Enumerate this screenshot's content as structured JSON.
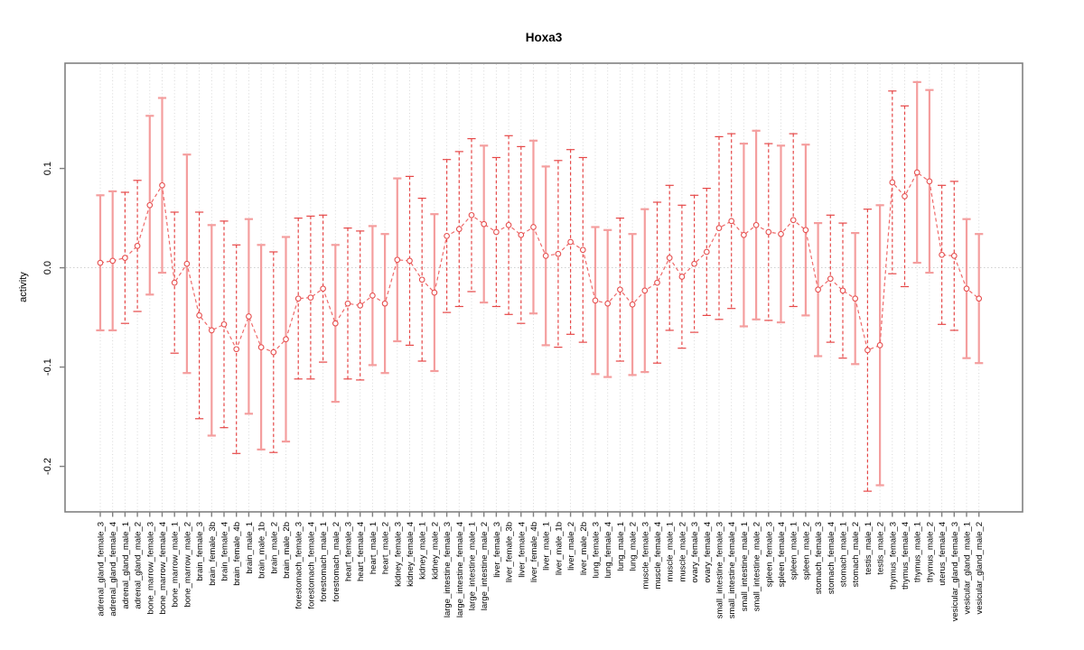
{
  "chart_data": {
    "type": "scatter",
    "title": "Hoxa3",
    "ylabel": "activity",
    "xlabel": "",
    "ylim": [
      -0.256,
      0.214
    ],
    "yticks": [
      0.1,
      0.0,
      -0.1,
      -0.2
    ],
    "ytick_labels": [
      "0.1",
      "0.0",
      "-0.1",
      "-0.2"
    ],
    "grid": "vertical-dotted",
    "zero_line": true,
    "legend_position": "none",
    "marker": "open-circle",
    "line_style": "dashed",
    "categories": [
      "adrenal_gland_female_3",
      "adrenal_gland_female_4",
      "adrenal_gland_male_1",
      "adrenal_gland_male_2",
      "bone_marrow_female_3",
      "bone_marrow_female_4",
      "bone_marrow_male_1",
      "bone_marrow_male_2",
      "brain_female_3",
      "brain_female_3b",
      "brain_female_4",
      "brain_female_4b",
      "brain_male_1",
      "brain_male_1b",
      "brain_male_2",
      "brain_male_2b",
      "forestomach_female_3",
      "forestomach_female_4",
      "forestomach_male_1",
      "forestomach_male_2",
      "heart_female_3",
      "heart_female_4",
      "heart_male_1",
      "heart_male_2",
      "kidney_female_3",
      "kidney_female_4",
      "kidney_male_1",
      "kidney_male_2",
      "large_intestine_female_3",
      "large_intestine_female_4",
      "large_intestine_male_1",
      "large_intestine_male_2",
      "liver_female_3",
      "liver_female_3b",
      "liver_female_4",
      "liver_female_4b",
      "liver_male_1",
      "liver_male_1b",
      "liver_male_2",
      "liver_male_2b",
      "lung_female_3",
      "lung_female_4",
      "lung_male_1",
      "lung_male_2",
      "muscle_female_3",
      "muscle_female_4",
      "muscle_male_1",
      "muscle_male_2",
      "ovary_female_3",
      "ovary_female_4",
      "small_intestine_female_3",
      "small_intestine_female_4",
      "small_intestine_male_1",
      "small_intestine_male_2",
      "spleen_female_3",
      "spleen_female_4",
      "spleen_male_1",
      "spleen_male_2",
      "stomach_female_3",
      "stomach_female_4",
      "stomach_male_1",
      "stomach_male_2",
      "testis_male_1",
      "testis_male_2",
      "thymus_female_3",
      "thymus_female_4",
      "thymus_male_1",
      "thymus_male_2",
      "uterus_female_4",
      "vesicular_gland_female_3",
      "vesicular_gland_male_1",
      "vesicular_gland_male_2"
    ],
    "values": [
      0.005,
      0.007,
      0.01,
      0.022,
      0.063,
      0.083,
      -0.015,
      0.004,
      -0.048,
      -0.063,
      -0.057,
      -0.082,
      -0.049,
      -0.08,
      -0.085,
      -0.072,
      -0.031,
      -0.03,
      -0.021,
      -0.056,
      -0.036,
      -0.038,
      -0.028,
      -0.036,
      0.008,
      0.007,
      -0.012,
      -0.025,
      0.032,
      0.039,
      0.053,
      0.044,
      0.036,
      0.043,
      0.033,
      0.041,
      0.012,
      0.014,
      0.026,
      0.018,
      -0.033,
      -0.036,
      -0.022,
      -0.037,
      -0.023,
      -0.015,
      0.01,
      -0.009,
      0.004,
      0.016,
      0.04,
      0.047,
      0.033,
      0.043,
      0.036,
      0.034,
      0.048,
      0.038,
      -0.022,
      -0.011,
      -0.023,
      -0.031,
      -0.083,
      -0.078,
      0.086,
      0.072,
      0.096,
      0.087,
      0.013,
      0.012,
      -0.021,
      -0.031
    ],
    "errors": [
      0.068,
      0.07,
      0.066,
      0.066,
      0.09,
      0.088,
      0.071,
      0.11,
      0.104,
      0.106,
      0.104,
      0.105,
      0.098,
      0.103,
      0.101,
      0.103,
      0.081,
      0.082,
      0.074,
      0.079,
      0.076,
      0.075,
      0.07,
      0.07,
      0.082,
      0.085,
      0.082,
      0.079,
      0.077,
      0.078,
      0.077,
      0.079,
      0.075,
      0.09,
      0.089,
      0.087,
      0.09,
      0.094,
      0.093,
      0.093,
      0.074,
      0.074,
      0.072,
      0.071,
      0.082,
      0.081,
      0.073,
      0.072,
      0.069,
      0.064,
      0.092,
      0.088,
      0.092,
      0.095,
      0.089,
      0.089,
      0.087,
      0.086,
      0.067,
      0.064,
      0.068,
      0.066,
      0.142,
      0.141,
      0.092,
      0.091,
      0.091,
      0.092,
      0.07,
      0.075,
      0.07,
      0.065
    ],
    "bar_styles": [
      "s",
      "s",
      "d",
      "d",
      "s",
      "s",
      "d",
      "s",
      "d",
      "s",
      "d",
      "d",
      "s",
      "s",
      "d",
      "s",
      "d",
      "d",
      "d",
      "s",
      "d",
      "d",
      "s",
      "s",
      "s",
      "d",
      "d",
      "s",
      "d",
      "d",
      "d",
      "s",
      "d",
      "d",
      "d",
      "s",
      "s",
      "d",
      "d",
      "d",
      "s",
      "s",
      "d",
      "s",
      "s",
      "d",
      "d",
      "d",
      "d",
      "d",
      "d",
      "d",
      "s",
      "s",
      "d",
      "s",
      "d",
      "s",
      "s",
      "d",
      "d",
      "s",
      "d",
      "s",
      "d",
      "d",
      "s",
      "s",
      "d",
      "d",
      "s",
      "s"
    ],
    "colors": {
      "solid_bar": "#f49e9e",
      "dashed_bar": "#e64848",
      "series_line": "#ef6a6a",
      "marker_stroke": "#e65050",
      "marker_fill": "#ffffff",
      "gridline": "#d4d4d4",
      "zero_line": "#c9c9c9",
      "box": "#808080",
      "tick": "#808080",
      "text": "#000000"
    }
  }
}
